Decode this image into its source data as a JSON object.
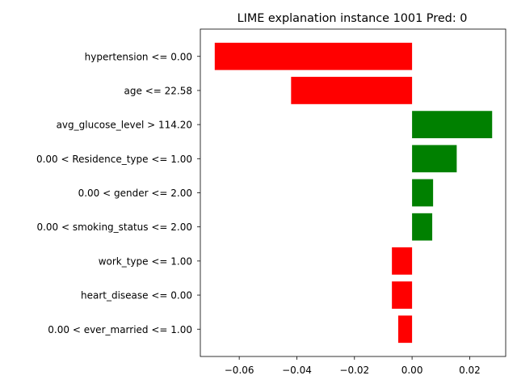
{
  "chart_data": {
    "type": "bar",
    "orientation": "horizontal",
    "title": "LIME explanation instance 1001 Pred: 0",
    "xlabel": "",
    "ylabel": "",
    "categories": [
      "hypertension <= 0.00",
      "age <= 22.58",
      "avg_glucose_level > 114.20",
      "0.00 < Residence_type <= 1.00",
      "0.00 < gender <= 2.00",
      "0.00 < smoking_status <= 2.00",
      "work_type <= 1.00",
      "heart_disease <= 0.00",
      "0.00 < ever_married <= 1.00"
    ],
    "values": [
      -0.0685,
      -0.042,
      0.0278,
      0.0155,
      0.0073,
      0.007,
      -0.007,
      -0.007,
      -0.0048
    ],
    "xlim": [
      -0.0735,
      0.0325
    ],
    "xticks": [
      -0.06,
      -0.04,
      -0.02,
      0.0,
      0.02
    ],
    "xtick_labels": [
      "−0.06",
      "−0.04",
      "−0.02",
      "0.00",
      "0.02"
    ],
    "grid": false,
    "colors": {
      "positive": "#008000",
      "negative": "#ff0000"
    }
  }
}
